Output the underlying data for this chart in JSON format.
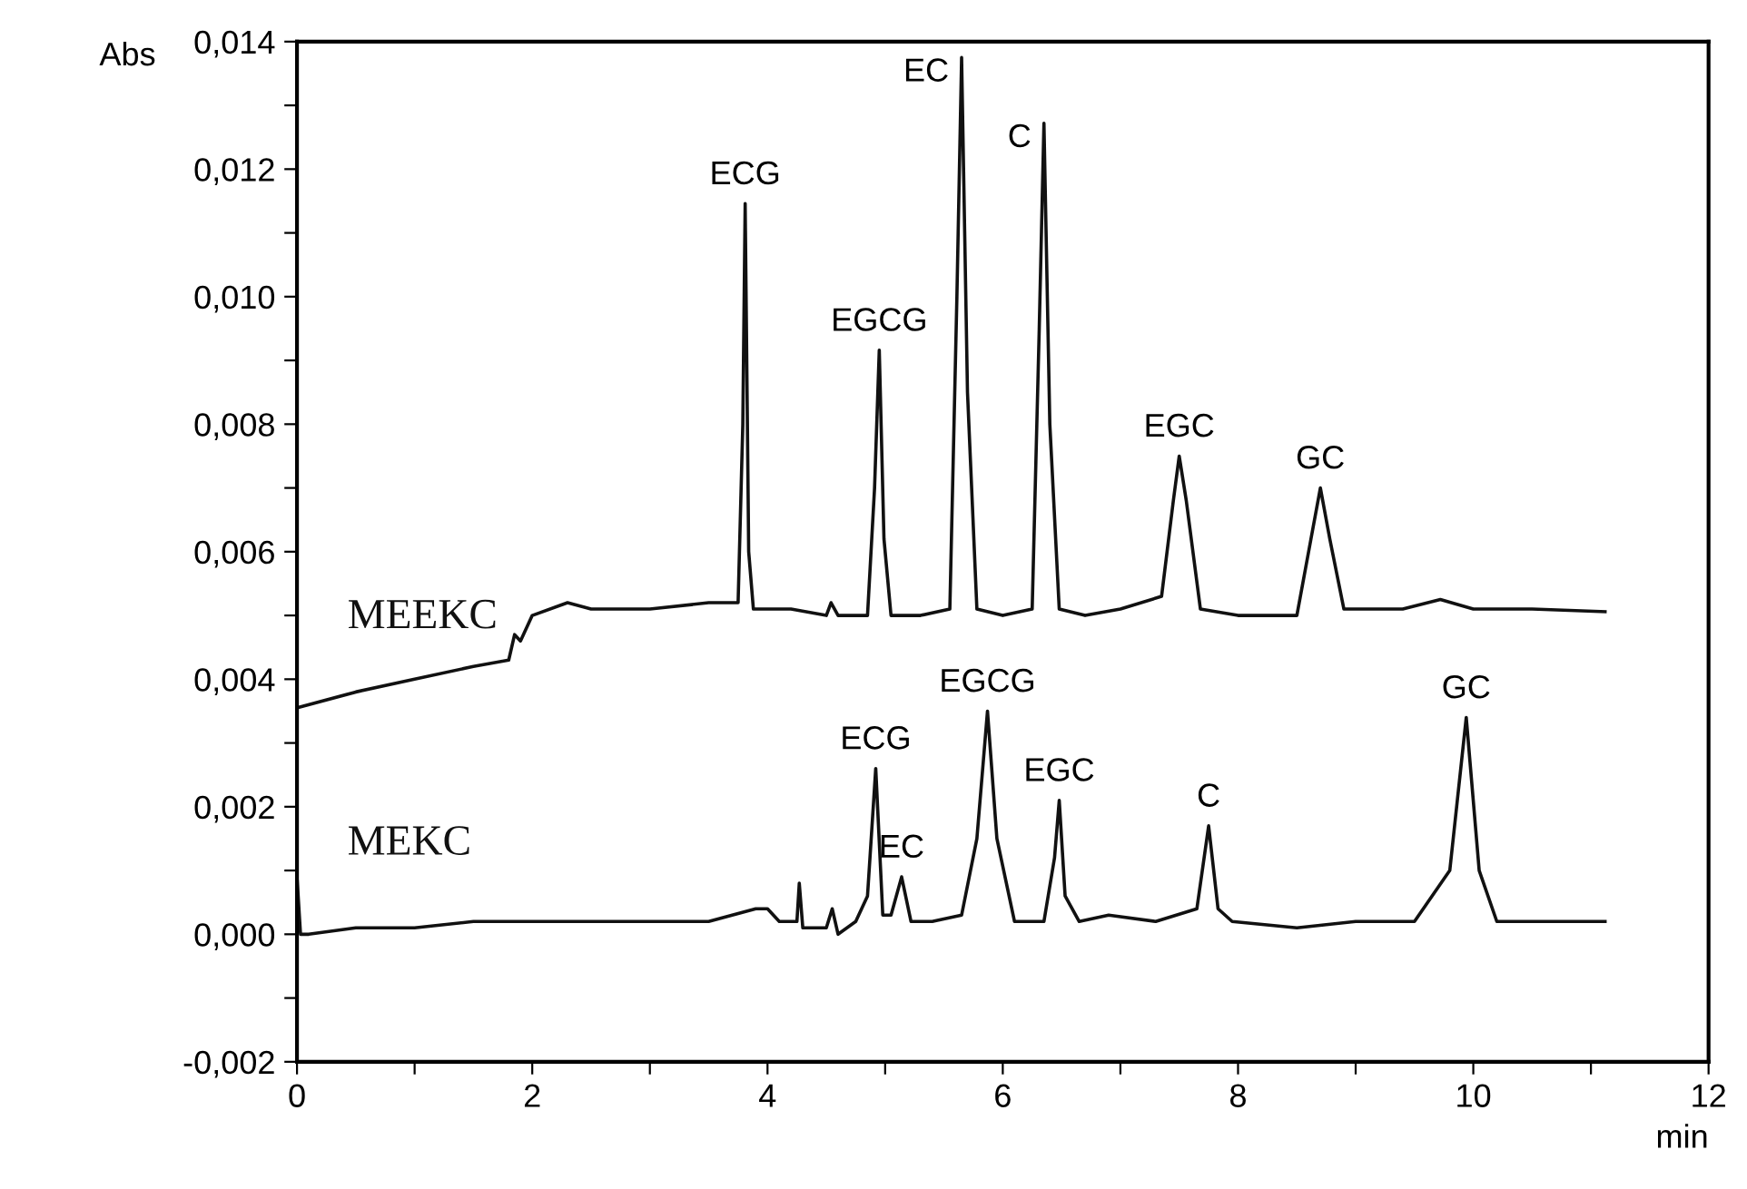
{
  "chart_data": {
    "type": "line",
    "xlabel": "min",
    "ylabel": "Abs",
    "xlim": [
      0,
      12
    ],
    "ylim": [
      -0.002,
      0.014
    ],
    "xticks": [
      0,
      {
        "value": 1,
        "label": null
      },
      2,
      {
        "value": 3,
        "label": null
      },
      4,
      {
        "value": 5,
        "label": null
      },
      6,
      {
        "value": 7,
        "label": null
      },
      8,
      {
        "value": 9,
        "label": null
      },
      10,
      {
        "value": 11,
        "label": null
      },
      12
    ],
    "yticks": [
      {
        "value": -0.002,
        "label": "-0,002"
      },
      {
        "value": -0.001,
        "label": null
      },
      {
        "value": 0,
        "label": "0,000"
      },
      {
        "value": 0.001,
        "label": null
      },
      {
        "value": 0.002,
        "label": "0,002"
      },
      {
        "value": 0.003,
        "label": null
      },
      {
        "value": 0.004,
        "label": "0,004"
      },
      {
        "value": 0.005,
        "label": null
      },
      {
        "value": 0.006,
        "label": "0,006"
      },
      {
        "value": 0.007,
        "label": null
      },
      {
        "value": 0.008,
        "label": "0,008"
      },
      {
        "value": 0.009,
        "label": null
      },
      {
        "value": 0.01,
        "label": "0,010"
      },
      {
        "value": 0.011,
        "label": null
      },
      {
        "value": 0.012,
        "label": "0,012"
      },
      {
        "value": 0.013,
        "label": null
      },
      {
        "value": 0.014,
        "label": "0,014"
      }
    ],
    "grid": false,
    "legend": false,
    "marker": "none",
    "line_style": "solid",
    "series": [
      {
        "name": "MEEKC",
        "color": "#111111",
        "x": [
          0,
          0.5,
          1.0,
          1.5,
          1.8,
          1.85,
          1.9,
          2.0,
          2.3,
          2.5,
          3.0,
          3.5,
          3.75,
          3.79,
          3.81,
          3.84,
          3.88,
          4.2,
          4.5,
          4.54,
          4.6,
          4.85,
          4.91,
          4.95,
          4.99,
          5.05,
          5.3,
          5.55,
          5.61,
          5.65,
          5.7,
          5.78,
          6.0,
          6.25,
          6.31,
          6.35,
          6.4,
          6.48,
          6.7,
          7.0,
          7.35,
          7.45,
          7.5,
          7.56,
          7.68,
          8.0,
          8.5,
          8.62,
          8.7,
          8.78,
          8.9,
          9.4,
          9.72,
          10.0,
          10.5,
          11.12
        ],
        "values": [
          0.00355,
          0.0038,
          0.004,
          0.0042,
          0.0043,
          0.0047,
          0.0046,
          0.005,
          0.0052,
          0.0051,
          0.0051,
          0.0052,
          0.0052,
          0.008,
          0.01146,
          0.006,
          0.0051,
          0.0051,
          0.005,
          0.0052,
          0.005,
          0.005,
          0.007,
          0.00916,
          0.0062,
          0.005,
          0.005,
          0.0051,
          0.01,
          0.01375,
          0.0085,
          0.0051,
          0.005,
          0.0051,
          0.0095,
          0.01272,
          0.008,
          0.0051,
          0.005,
          0.0051,
          0.0053,
          0.0068,
          0.0075,
          0.0068,
          0.0051,
          0.005,
          0.005,
          0.0062,
          0.007,
          0.0062,
          0.0051,
          0.0051,
          0.00525,
          0.0051,
          0.0051,
          0.00506
        ]
      },
      {
        "name": "MEKC",
        "color": "#111111",
        "x": [
          0,
          0.03,
          0.1,
          0.5,
          1.0,
          1.5,
          2.0,
          3.0,
          3.5,
          3.9,
          4.0,
          4.1,
          4.25,
          4.27,
          4.3,
          4.35,
          4.5,
          4.55,
          4.6,
          4.75,
          4.85,
          4.92,
          4.98,
          5.05,
          5.14,
          5.22,
          5.4,
          5.65,
          5.78,
          5.87,
          5.95,
          6.1,
          6.35,
          6.44,
          6.48,
          6.53,
          6.65,
          6.9,
          7.3,
          7.65,
          7.75,
          7.83,
          7.95,
          8.5,
          9.0,
          9.5,
          9.8,
          9.94,
          10.05,
          10.2,
          10.6,
          11.12
        ],
        "values": [
          0.0009,
          0.0,
          0.0,
          0.0001,
          0.0001,
          0.0002,
          0.0002,
          0.0002,
          0.0002,
          0.0004,
          0.0004,
          0.0002,
          0.0002,
          0.0008,
          0.0001,
          0.0001,
          0.0001,
          0.0004,
          0.0,
          0.0002,
          0.0006,
          0.0026,
          0.0003,
          0.0003,
          0.0009,
          0.0002,
          0.0002,
          0.0003,
          0.0015,
          0.0035,
          0.0015,
          0.0002,
          0.0002,
          0.0012,
          0.0021,
          0.0006,
          0.0002,
          0.0003,
          0.0002,
          0.0004,
          0.0017,
          0.0004,
          0.0002,
          0.0001,
          0.0002,
          0.0002,
          0.001,
          0.0034,
          0.001,
          0.0002,
          0.0002,
          0.0002
        ]
      }
    ],
    "annotations": [
      {
        "text": "ECG",
        "x": 3.81,
        "y": 0.01146
      },
      {
        "text": "EGCG",
        "x": 4.95,
        "y": 0.00916
      },
      {
        "text": "EC",
        "x": 5.65,
        "y": 0.01375
      },
      {
        "text": "C",
        "x": 6.35,
        "y": 0.01272
      },
      {
        "text": "EGC",
        "x": 7.5,
        "y": 0.0075
      },
      {
        "text": "GC",
        "x": 8.7,
        "y": 0.007
      },
      {
        "text": "ECG",
        "x": 4.92,
        "y": 0.0026
      },
      {
        "text": "EC",
        "x": 5.14,
        "y": 0.0009
      },
      {
        "text": "EGCG",
        "x": 5.87,
        "y": 0.0035
      },
      {
        "text": "EGC",
        "x": 6.48,
        "y": 0.0021
      },
      {
        "text": "C",
        "x": 7.75,
        "y": 0.0017
      },
      {
        "text": "GC",
        "x": 9.94,
        "y": 0.0034
      }
    ]
  }
}
